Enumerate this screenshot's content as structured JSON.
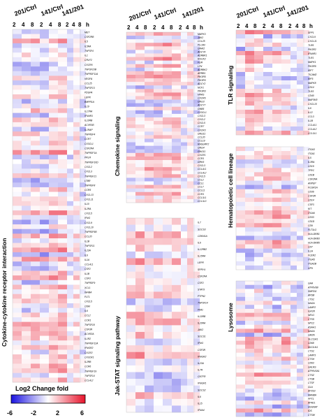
{
  "chart_data": [
    {
      "type": "heatmap",
      "title": "Cytokine-cytokine receptor interaction",
      "groups": [
        "201/Ctrl",
        "141/Ctrl",
        "141/201"
      ],
      "timepoints": [
        "2",
        "4",
        "8"
      ],
      "time_unit": "h",
      "rows": [
        "MET",
        "CSF2RB",
        "IL5",
        "IL5RA",
        "TNFSF4",
        "IL1",
        "CRLF2",
        "CXCR6",
        "TNFSF10B",
        "TNFRSF11A",
        "VEGFA",
        "CCL25",
        "TNFSF13",
        "PDGFA",
        "LEPR",
        "BMPR1A",
        "IL19",
        "IL17RA",
        "IFNAR1",
        "IL10RB",
        "ACVR1B",
        "IL1RAP",
        "TNFRSF4",
        "CCR7",
        "CX3CL1",
        "CSF2RA",
        "TNFRSF1A",
        "PRLR",
        "TNFRSF10D",
        "CXCL2",
        "CXCL3",
        "TNFRSF21",
        "LTBR",
        "TNFRSF8",
        "CCR5",
        "CXCL13",
        "CXCL11",
        "IL10",
        "IL2RA",
        "CXCL5",
        "IFNG",
        "CXCL9",
        "CXCL10",
        "TNFRSF6B",
        "CCL20",
        "IL1B",
        "TNFSF11",
        "IL23A",
        "IL6",
        "IL1A",
        "CCL4L1",
        "CSF2",
        "IL1B",
        "CSF3",
        "TNFRSF9",
        "XCL1",
        "INHBA",
        "FLT1",
        "CXCL5",
        "OSM",
        "IL6",
        "CCL2",
        "CCR1",
        "TNFSF18",
        "CSF3R",
        "ACVR2A",
        "IL1R2",
        "TNFRSF12A",
        "IFNGR2",
        "CXCR2",
        "CX3CR1",
        "IL2RB",
        "CCR6",
        "TNFRSF19",
        "TNFSF14",
        "CCL4L2"
      ],
      "color_scale": "blue-white-red"
    },
    {
      "type": "heatmap",
      "title": "Chemokine signaling",
      "groups": [
        "201/Ctrl",
        "141/Ctrl",
        "141/201"
      ],
      "timepoints": [
        "2",
        "4",
        "8"
      ],
      "time_unit": "h",
      "rows": [
        "MAPK3",
        "JAK2",
        "CCL25",
        "PLCB3",
        "GNAI2",
        "ADCY4",
        "ADRBK1",
        "ROCK2",
        "FGR",
        "LYN",
        "ADRBK2",
        "ARRB1",
        "PIK3R5",
        "PIK3R3",
        "ADCY2",
        "NCF1",
        "PIK3R3",
        "HRAS",
        "CXCR6",
        "GNG3",
        "ADCY7",
        "GNB5",
        "CX3CL1",
        "CXCL3",
        "CXCL2",
        "CXCL5",
        "CCR7",
        "CXCR3",
        "GNG11",
        "CCL20",
        "CCL19",
        "RASGRP2",
        "GNG4",
        "GNG11",
        "CXCR1",
        "CCR1",
        "GRK5",
        "CXCL3",
        "CCL4L1",
        "CCL4L2",
        "CXCL5",
        "CCL2",
        "CCL1",
        "CCL7",
        "CCL11",
        "CCR1",
        "CCL3L1",
        "CCL3L3"
      ],
      "color_scale": "blue-white-red"
    },
    {
      "type": "heatmap",
      "title": "Jak-STAT signaling pathway",
      "groups": [
        "201/Ctrl",
        "141/Ctrl",
        "141/201"
      ],
      "timepoints": [
        "2",
        "4",
        "8"
      ],
      "time_unit": "h",
      "rows": [
        "IL7",
        "SOCS3",
        "CDKN1A",
        "IL6",
        "IL12RB2",
        "IL15RA",
        "LEPR",
        "SPRY4",
        "CSF2RA",
        "CSF2",
        "STAT3",
        "PTPN2",
        "TNFSF14",
        "PIM1",
        "IL10RB",
        "IL20RA",
        "JAK2",
        "SOCS1",
        "IFNG",
        "CSF3R",
        "IFNGR2",
        "IL23A",
        "IL7R",
        "CNTFR",
        "IFNGR1",
        "SOCS2",
        "IL6",
        "IL15",
        "IFNA4"
      ],
      "color_scale": "blue-white-red"
    },
    {
      "type": "heatmap",
      "title": "TLR signaling",
      "groups": [
        "201/Ctrl",
        "141/Ctrl",
        "141/201"
      ],
      "timepoints": [
        "2",
        "4",
        "8"
      ],
      "time_unit": "h",
      "rows": [
        "SPP1",
        "CXCL9",
        "CXCL11",
        "TLR5",
        "PIK3R2",
        "IFNAR1",
        "TLR1",
        "MAPK1",
        "PIK3R5",
        "IRF7",
        "TICAM2",
        "IRF5",
        "MAPK8",
        "CD14",
        "TLR3",
        "CD40",
        "MAP3K8",
        "CXCL10",
        "IL6",
        "IL12",
        "CCL3",
        "IL1B",
        "CCL4L1",
        "CCL4L2",
        "CCL3L1"
      ],
      "color_scale": "blue-white-red"
    },
    {
      "type": "heatmap",
      "title": "Hematopoietic cell lineage",
      "groups": [
        "201/Ctrl",
        "141/Ctrl",
        "141/201"
      ],
      "timepoints": [
        "2",
        "4",
        "8"
      ],
      "time_unit": "h",
      "rows": [
        "ITGA3",
        "ITGA1",
        "IL5",
        "IL3RA",
        "CD19",
        "TFRC",
        "CD1B",
        "CSF2RA",
        "ANPEP",
        "FCGR1A",
        "CD36",
        "CSF3R",
        "CD14",
        "CSF3",
        "KIT",
        "ITGA6",
        "CD33",
        "CD1D",
        "CD9",
        "FLT3LG",
        "HLA-DRB1",
        "HLA-DRB3",
        "HLA-DRB5",
        "CD7",
        "IL1A",
        "FCER2",
        "ITGA5",
        "ITGA2B",
        "GP9"
      ],
      "color_scale": "blue-white-red"
    },
    {
      "type": "heatmap",
      "title": "Lysosome",
      "groups": [
        "201/Ctrl",
        "141/Ctrl",
        "141/201"
      ],
      "timepoints": [
        "2",
        "4",
        "8"
      ],
      "time_unit": "h",
      "rows": [
        "GAA",
        "ATP6V0B",
        "SMPDG",
        "ARSB",
        "CTSC",
        "NAGA",
        "LAMP2",
        "IGF2R",
        "NEU1",
        "CTSS",
        "NPC2",
        "ASAH1",
        "NAGA",
        "GM2A",
        "SLC11A1",
        "CD68",
        "MCOLN1",
        "CTSC",
        "LAMP3",
        "CTSH",
        "CD63",
        "GALNS",
        "ATP6V0A1",
        "CTSZ",
        "CTSB",
        "CTSF",
        "GLA",
        "AP3S3",
        "MANBA",
        "PPT1",
        "AP4E1",
        "HGSNAT",
        "IDS",
        "CTSW"
      ],
      "color_scale": "blue-white-red"
    }
  ],
  "legend": {
    "title": "Log2 Change fold",
    "ticks": [
      "-6",
      "-2",
      "2",
      "6"
    ],
    "min": -6,
    "max": 6,
    "colors": {
      "low": "#1a12e0",
      "mid": "#ffffff",
      "high": "#e8122a"
    }
  },
  "labels": {
    "h": "h",
    "cyto": "Cytokine-cytokine receptor interaction",
    "chemo": "Chemokine signaling",
    "jak": "Jak-STAT signaling pathway",
    "tlr": "TLR signaling",
    "hema": "Hematopoietic cell lineage",
    "lyso": "Lysosome"
  }
}
